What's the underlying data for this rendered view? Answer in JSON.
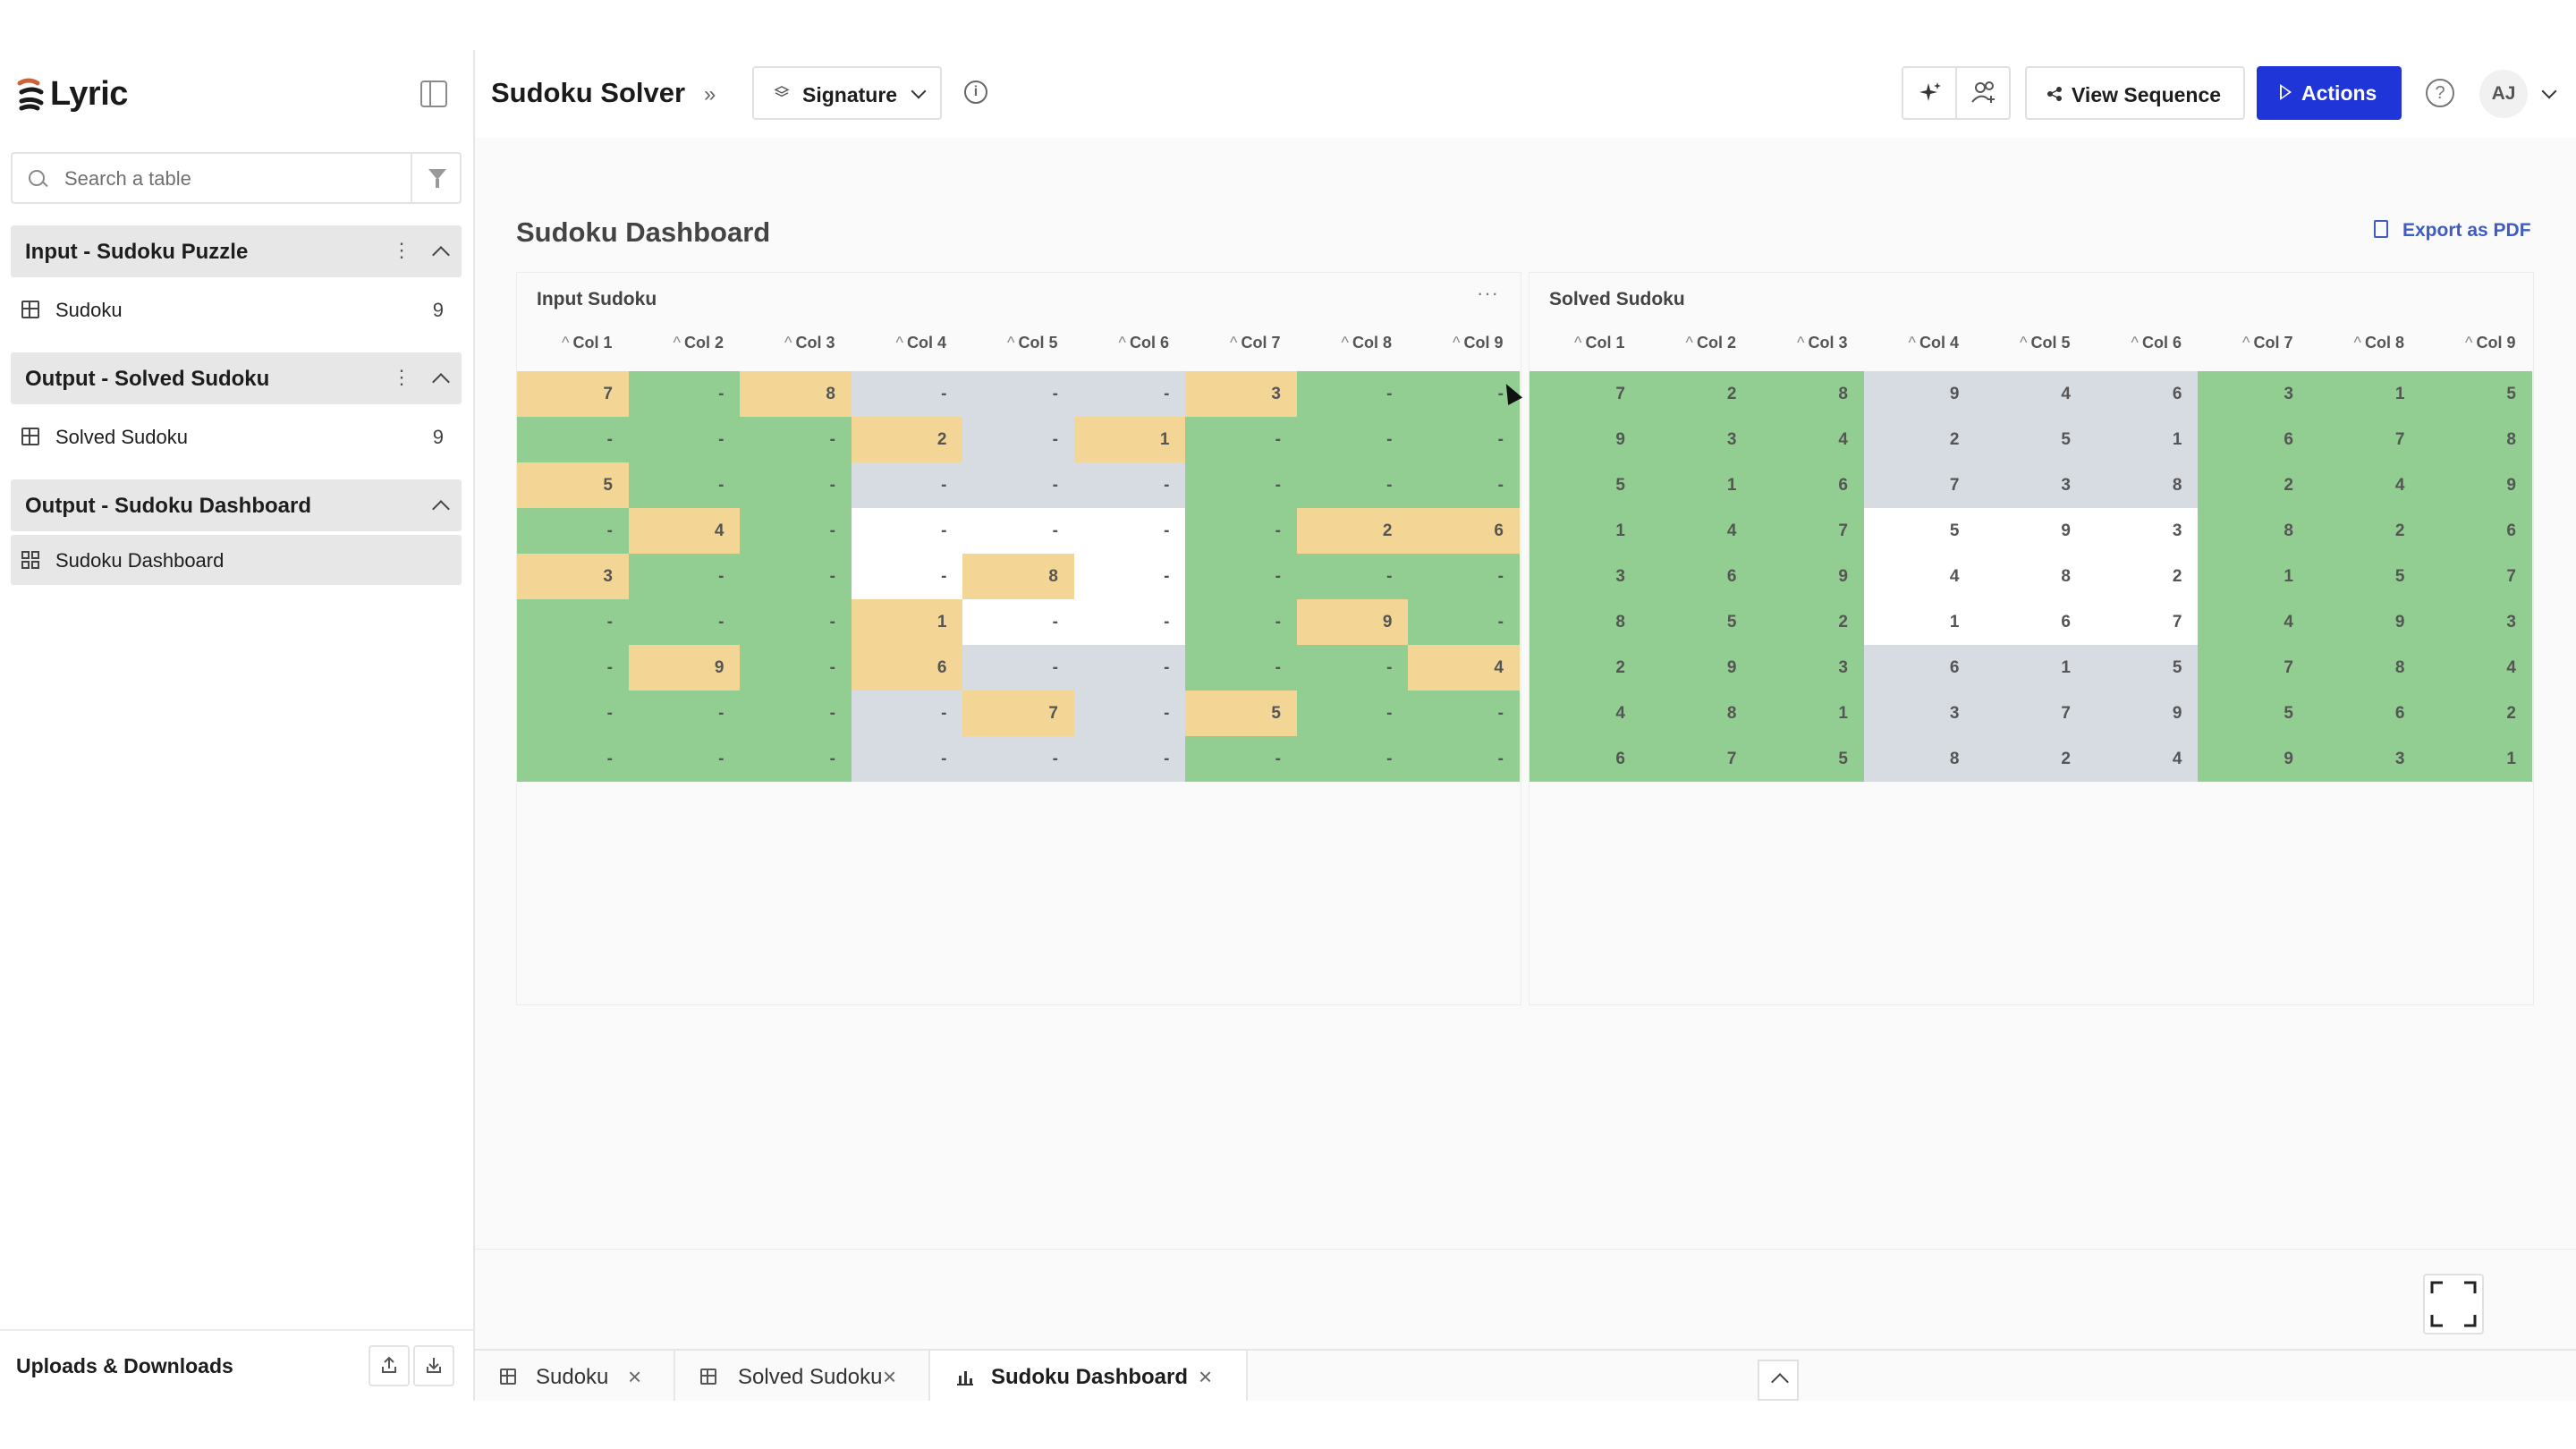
{
  "app": {
    "logo_text": "Lyric"
  },
  "sidebar": {
    "search_placeholder": "Search a table",
    "groups": [
      {
        "title": "Input - Sudoku Puzzle",
        "items": [
          {
            "label": "Sudoku",
            "count": "9",
            "icon": "table-icon"
          }
        ]
      },
      {
        "title": "Output - Solved Sudoku",
        "items": [
          {
            "label": "Solved Sudoku",
            "count": "9",
            "icon": "table-icon"
          }
        ]
      },
      {
        "title": "Output - Sudoku Dashboard",
        "items": [
          {
            "label": "Sudoku Dashboard",
            "count": "",
            "icon": "dashboard-icon"
          }
        ]
      }
    ],
    "uploads_label": "Uploads & Downloads"
  },
  "header": {
    "title": "Sudoku Solver",
    "signature_label": "Signature",
    "view_sequence_label": "View Sequence",
    "actions_label": "Actions",
    "avatar_initials": "AJ"
  },
  "dashboard": {
    "title": "Sudoku Dashboard",
    "export_label": "Export as PDF",
    "columns": [
      "Col 1",
      "Col 2",
      "Col 3",
      "Col 4",
      "Col 5",
      "Col 6",
      "Col 7",
      "Col 8",
      "Col 9"
    ],
    "input_panel": {
      "title": "Input Sudoku",
      "rows": [
        [
          "7",
          "-",
          "8",
          "-",
          "-",
          "-",
          "3",
          "-",
          "-"
        ],
        [
          "-",
          "-",
          "-",
          "2",
          "-",
          "1",
          "-",
          "-",
          "-"
        ],
        [
          "5",
          "-",
          "-",
          "-",
          "-",
          "-",
          "-",
          "-",
          "-"
        ],
        [
          "-",
          "4",
          "-",
          "-",
          "-",
          "-",
          "-",
          "2",
          "6"
        ],
        [
          "3",
          "-",
          "-",
          "-",
          "8",
          "-",
          "-",
          "-",
          "-"
        ],
        [
          "-",
          "-",
          "-",
          "1",
          "-",
          "-",
          "-",
          "9",
          "-"
        ],
        [
          "-",
          "9",
          "-",
          "6",
          "-",
          "-",
          "-",
          "-",
          "4"
        ],
        [
          "-",
          "-",
          "-",
          "-",
          "7",
          "-",
          "5",
          "-",
          "-"
        ],
        [
          "-",
          "-",
          "-",
          "-",
          "-",
          "-",
          "-",
          "-",
          "-"
        ]
      ],
      "colors": [
        [
          "y",
          "g",
          "y",
          "s",
          "s",
          "s",
          "y",
          "g",
          "g"
        ],
        [
          "g",
          "g",
          "g",
          "y",
          "s",
          "y",
          "g",
          "g",
          "g"
        ],
        [
          "y",
          "g",
          "g",
          "s",
          "s",
          "s",
          "g",
          "g",
          "g"
        ],
        [
          "g",
          "y",
          "g",
          "w",
          "w",
          "w",
          "g",
          "y",
          "y"
        ],
        [
          "y",
          "g",
          "g",
          "w",
          "y",
          "w",
          "g",
          "g",
          "g"
        ],
        [
          "g",
          "g",
          "g",
          "y",
          "w",
          "w",
          "g",
          "y",
          "g"
        ],
        [
          "g",
          "y",
          "g",
          "y",
          "s",
          "s",
          "g",
          "g",
          "y"
        ],
        [
          "g",
          "g",
          "g",
          "s",
          "y",
          "s",
          "y",
          "g",
          "g"
        ],
        [
          "g",
          "g",
          "g",
          "s",
          "s",
          "s",
          "g",
          "g",
          "g"
        ]
      ]
    },
    "solved_panel": {
      "title": "Solved Sudoku",
      "rows": [
        [
          "7",
          "2",
          "8",
          "9",
          "4",
          "6",
          "3",
          "1",
          "5"
        ],
        [
          "9",
          "3",
          "4",
          "2",
          "5",
          "1",
          "6",
          "7",
          "8"
        ],
        [
          "5",
          "1",
          "6",
          "7",
          "3",
          "8",
          "2",
          "4",
          "9"
        ],
        [
          "1",
          "4",
          "7",
          "5",
          "9",
          "3",
          "8",
          "2",
          "6"
        ],
        [
          "3",
          "6",
          "9",
          "4",
          "8",
          "2",
          "1",
          "5",
          "7"
        ],
        [
          "8",
          "5",
          "2",
          "1",
          "6",
          "7",
          "4",
          "9",
          "3"
        ],
        [
          "2",
          "9",
          "3",
          "6",
          "1",
          "5",
          "7",
          "8",
          "4"
        ],
        [
          "4",
          "8",
          "1",
          "3",
          "7",
          "9",
          "5",
          "6",
          "2"
        ],
        [
          "6",
          "7",
          "5",
          "8",
          "2",
          "4",
          "9",
          "3",
          "1"
        ]
      ],
      "colors": [
        [
          "g",
          "g",
          "g",
          "s",
          "s",
          "s",
          "g",
          "g",
          "g"
        ],
        [
          "g",
          "g",
          "g",
          "s",
          "s",
          "s",
          "g",
          "g",
          "g"
        ],
        [
          "g",
          "g",
          "g",
          "s",
          "s",
          "s",
          "g",
          "g",
          "g"
        ],
        [
          "g",
          "g",
          "g",
          "w",
          "w",
          "w",
          "g",
          "g",
          "g"
        ],
        [
          "g",
          "g",
          "g",
          "w",
          "w",
          "w",
          "g",
          "g",
          "g"
        ],
        [
          "g",
          "g",
          "g",
          "w",
          "w",
          "w",
          "g",
          "g",
          "g"
        ],
        [
          "g",
          "g",
          "g",
          "s",
          "s",
          "s",
          "g",
          "g",
          "g"
        ],
        [
          "g",
          "g",
          "g",
          "s",
          "s",
          "s",
          "g",
          "g",
          "g"
        ],
        [
          "g",
          "g",
          "g",
          "s",
          "s",
          "s",
          "g",
          "g",
          "g"
        ]
      ]
    },
    "cell_colors": {
      "g": "#92cd92",
      "y": "#f3d595",
      "s": "#d7dbe2",
      "w": "#ffffff"
    }
  },
  "tabs": [
    {
      "label": "Sudoku",
      "icon": "table-icon",
      "active": false
    },
    {
      "label": "Solved Sudoku",
      "icon": "table-icon",
      "active": false
    },
    {
      "label": "Sudoku Dashboard",
      "icon": "chart-icon",
      "active": true
    }
  ]
}
